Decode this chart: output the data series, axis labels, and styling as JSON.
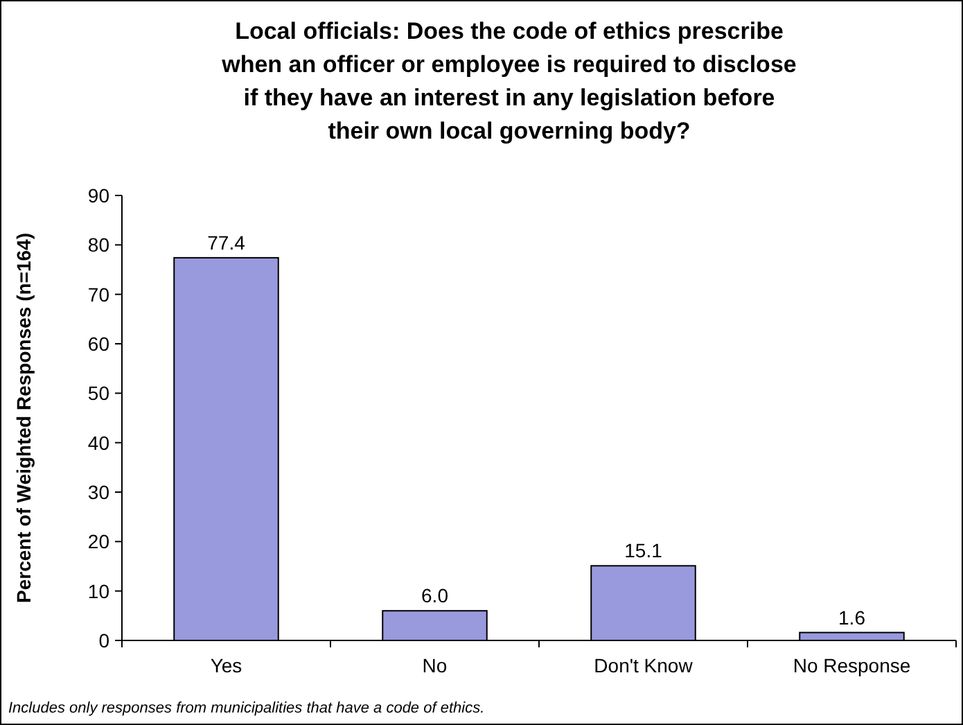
{
  "chart_data": {
    "type": "bar",
    "title": "Local officials: Does the code of ethics prescribe when an officer or employee is required to disclose if they have an interest in any legislation before their own local governing body?",
    "ylabel": "Percent of Weighted Responses (n=164)",
    "categories": [
      "Yes",
      "No",
      "Don't Know",
      "No Response"
    ],
    "values": [
      77.4,
      6.0,
      15.1,
      1.6
    ],
    "value_labels": [
      "77.4",
      "6.0",
      "15.1",
      "1.6"
    ],
    "color": "#9999dd",
    "ylim": [
      0,
      90
    ],
    "yticks": [
      0,
      10,
      20,
      30,
      40,
      50,
      60,
      70,
      80,
      90
    ],
    "annotations": [
      "Includes only responses from municipalities that have a code of ethics."
    ]
  }
}
